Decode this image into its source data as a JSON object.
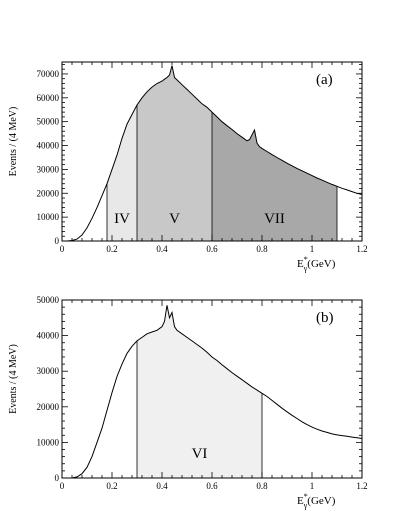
{
  "chart_data": [
    {
      "type": "area",
      "panel_label": "(a)",
      "ylabel": "Events / (4 MeV)",
      "xlabel_main": "E",
      "xlabel_sub": "γ",
      "xlabel_sup": "*",
      "xlabel_unit": "(GeV)",
      "xlim": [
        0,
        1.2
      ],
      "ylim": [
        0,
        75000
      ],
      "x_ticks": [
        0,
        0.2,
        0.4,
        0.6,
        0.8,
        1,
        1.2
      ],
      "x_tick_labels": [
        "0",
        "0.2",
        "0.4",
        "0.6",
        "0.8",
        "1",
        "1.2"
      ],
      "y_ticks": [
        0,
        10000,
        20000,
        30000,
        40000,
        50000,
        60000,
        70000
      ],
      "y_tick_labels": [
        "0",
        "10000",
        "20000",
        "30000",
        "40000",
        "50000",
        "60000",
        "70000"
      ],
      "x": [
        0.0,
        0.02,
        0.04,
        0.06,
        0.08,
        0.1,
        0.12,
        0.14,
        0.16,
        0.18,
        0.2,
        0.22,
        0.24,
        0.26,
        0.28,
        0.3,
        0.32,
        0.34,
        0.36,
        0.38,
        0.4,
        0.41,
        0.42,
        0.43,
        0.44,
        0.45,
        0.46,
        0.48,
        0.5,
        0.52,
        0.54,
        0.56,
        0.58,
        0.6,
        0.62,
        0.64,
        0.66,
        0.68,
        0.7,
        0.72,
        0.74,
        0.75,
        0.76,
        0.77,
        0.78,
        0.79,
        0.8,
        0.82,
        0.84,
        0.86,
        0.88,
        0.9,
        0.92,
        0.94,
        0.96,
        0.98,
        1.0,
        1.02,
        1.04,
        1.06,
        1.08,
        1.1,
        1.12,
        1.14,
        1.16,
        1.18,
        1.2
      ],
      "y": [
        0,
        0,
        200,
        800,
        2500,
        5500,
        9500,
        14000,
        19000,
        24000,
        30000,
        36000,
        43000,
        49000,
        53000,
        57000,
        60000,
        62500,
        64500,
        66000,
        67000,
        67800,
        68500,
        69500,
        73500,
        68500,
        67500,
        65500,
        63500,
        61500,
        59500,
        57500,
        56000,
        54000,
        52000,
        50000,
        48300,
        46700,
        45000,
        43500,
        42000,
        42500,
        44500,
        46500,
        41000,
        39500,
        38800,
        37500,
        36200,
        35000,
        33800,
        32600,
        31500,
        30400,
        29400,
        28400,
        27400,
        26400,
        25500,
        24600,
        23700,
        22900,
        22100,
        21400,
        20700,
        20000,
        19500
      ],
      "regions": [
        {
          "label": "IV",
          "x_start": 0.18,
          "x_end": 0.3,
          "shade": "#e8e8e8"
        },
        {
          "label": "V",
          "x_start": 0.3,
          "x_end": 0.6,
          "shade": "#c8c8c8"
        },
        {
          "label": "VII",
          "x_start": 0.6,
          "x_end": 1.1,
          "shade": "#a8a8a8"
        }
      ]
    },
    {
      "type": "area",
      "panel_label": "(b)",
      "ylabel": "Events / (4 MeV)",
      "xlabel_main": "E",
      "xlabel_sub": "γ",
      "xlabel_sup": "*",
      "xlabel_unit": "(GeV)",
      "xlim": [
        0,
        1.2
      ],
      "ylim": [
        0,
        50000
      ],
      "x_ticks": [
        0,
        0.2,
        0.4,
        0.6,
        0.8,
        1,
        1.2
      ],
      "x_tick_labels": [
        "0",
        "0.2",
        "0.4",
        "0.6",
        "0.8",
        "1",
        "1.2"
      ],
      "y_ticks": [
        0,
        10000,
        20000,
        30000,
        40000,
        50000
      ],
      "y_tick_labels": [
        "0",
        "10000",
        "20000",
        "30000",
        "40000",
        "50000"
      ],
      "x": [
        0.0,
        0.02,
        0.04,
        0.06,
        0.08,
        0.1,
        0.12,
        0.14,
        0.16,
        0.18,
        0.2,
        0.22,
        0.24,
        0.26,
        0.28,
        0.3,
        0.32,
        0.34,
        0.36,
        0.38,
        0.4,
        0.41,
        0.42,
        0.43,
        0.44,
        0.45,
        0.46,
        0.48,
        0.5,
        0.52,
        0.54,
        0.56,
        0.58,
        0.6,
        0.62,
        0.64,
        0.66,
        0.68,
        0.7,
        0.72,
        0.74,
        0.76,
        0.78,
        0.8,
        0.82,
        0.84,
        0.86,
        0.88,
        0.9,
        0.92,
        0.94,
        0.96,
        0.98,
        1.0,
        1.02,
        1.04,
        1.06,
        1.08,
        1.1,
        1.12,
        1.14,
        1.16,
        1.18,
        1.2
      ],
      "y": [
        0,
        0,
        0,
        300,
        1200,
        3000,
        6000,
        10000,
        14000,
        19000,
        24000,
        28500,
        32000,
        35000,
        37000,
        38500,
        39500,
        40500,
        41000,
        41500,
        42500,
        44000,
        48500,
        45000,
        46500,
        42500,
        41500,
        40500,
        39500,
        38500,
        37500,
        36500,
        35300,
        34000,
        33000,
        31800,
        30700,
        29600,
        28600,
        27600,
        26600,
        25600,
        24700,
        23800,
        22900,
        21800,
        20700,
        19600,
        18600,
        17600,
        16700,
        15800,
        15000,
        14300,
        13700,
        13200,
        12800,
        12400,
        12100,
        11900,
        11700,
        11500,
        11300,
        11100
      ],
      "regions": [
        {
          "label": "VI",
          "x_start": 0.3,
          "x_end": 0.8,
          "shade": "#f0f0f0"
        }
      ]
    }
  ]
}
